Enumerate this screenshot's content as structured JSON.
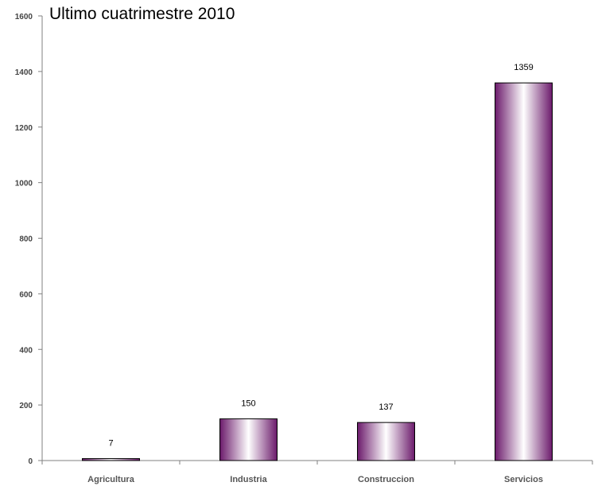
{
  "chart_data": {
    "type": "bar",
    "title": "Ultimo cuatrimestre 2010",
    "categories": [
      "Agricultura",
      "Industria",
      "Construccion",
      "Servicios"
    ],
    "values": [
      7,
      150,
      137,
      1359
    ],
    "data_labels": [
      "7",
      "150",
      "137",
      "1359"
    ],
    "ylim": [
      0,
      1600
    ],
    "yticks": [
      "0",
      "200",
      "400",
      "600",
      "800",
      "1000",
      "1200",
      "1400",
      "1600"
    ],
    "xlabel": "",
    "ylabel": "",
    "grid": false,
    "legend": "none",
    "bar_color": "#6b1a6b",
    "bar_highlight": "#ffffff"
  }
}
